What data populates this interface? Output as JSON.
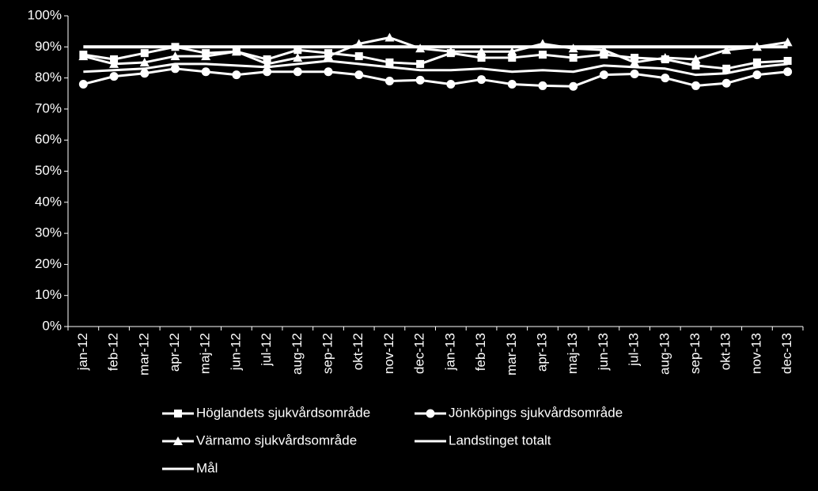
{
  "chart_data": {
    "type": "line",
    "categories": [
      "jan-12",
      "feb-12",
      "mar-12",
      "apr-12",
      "maj-12",
      "jun-12",
      "jul-12",
      "aug-12",
      "sep-12",
      "okt-12",
      "nov-12",
      "dec-12",
      "jan-13",
      "feb-13",
      "mar-13",
      "apr-13",
      "maj-13",
      "jun-13",
      "jul-13",
      "aug-13",
      "sep-13",
      "okt-13",
      "nov-13",
      "dec-13"
    ],
    "ylim": [
      0,
      100
    ],
    "yticks": [
      {
        "value": 0,
        "label": "0%"
      },
      {
        "value": 10,
        "label": "10%"
      },
      {
        "value": 20,
        "label": "20%"
      },
      {
        "value": 30,
        "label": "30%"
      },
      {
        "value": 40,
        "label": "40%"
      },
      {
        "value": 50,
        "label": "50%"
      },
      {
        "value": 60,
        "label": "60%"
      },
      {
        "value": 70,
        "label": "70%"
      },
      {
        "value": 80,
        "label": "80%"
      },
      {
        "value": 90,
        "label": "90%"
      },
      {
        "value": 100,
        "label": "100%"
      }
    ],
    "grid": false,
    "legend": "bottom",
    "series": [
      {
        "name": "Höglandets sjukvårdsområde",
        "color": "#ffffff",
        "marker": "square",
        "values": [
          87.5,
          86,
          88,
          90,
          88,
          88.5,
          86,
          89,
          88,
          87,
          85,
          84.5,
          88,
          86.5,
          86.5,
          87.5,
          86.5,
          87.5,
          86.5,
          86,
          84,
          83,
          85,
          85.5
        ]
      },
      {
        "name": "Jönköpings sjukvårdsområde",
        "color": "#ffffff",
        "marker": "circle",
        "values": [
          78,
          80.5,
          81.5,
          83,
          82,
          81,
          82,
          82,
          82,
          81,
          79,
          79.3,
          78,
          79.5,
          78,
          77.5,
          77.3,
          81,
          81.3,
          80,
          77.5,
          78.3,
          81,
          82
        ]
      },
      {
        "name": "Värnamo sjukvårdsområde",
        "color": "#ffffff",
        "marker": "triangle",
        "values": [
          87,
          84.5,
          85,
          87,
          87,
          88.5,
          84.5,
          86.5,
          87,
          91,
          93,
          89.5,
          88.5,
          88.5,
          88.5,
          91,
          89.5,
          89,
          85,
          86.5,
          86,
          89,
          90,
          91.5
        ]
      },
      {
        "name": "Landstinget totalt",
        "color": "#ffffff",
        "marker": "none",
        "values": [
          82,
          82.5,
          83,
          84.5,
          84.5,
          84,
          83.5,
          84.5,
          85.5,
          84.5,
          83.5,
          82.5,
          82.5,
          83,
          82,
          82.5,
          82,
          84,
          83.5,
          83,
          81,
          81.5,
          83.5,
          84.5
        ]
      },
      {
        "name": "Mål",
        "color": "#ffffff",
        "marker": "none",
        "values": [
          90,
          90,
          90,
          90,
          90,
          90,
          90,
          90,
          90,
          90,
          90,
          90,
          90,
          90,
          90,
          90,
          90,
          90,
          90,
          90,
          90,
          90,
          90,
          90
        ]
      }
    ]
  }
}
